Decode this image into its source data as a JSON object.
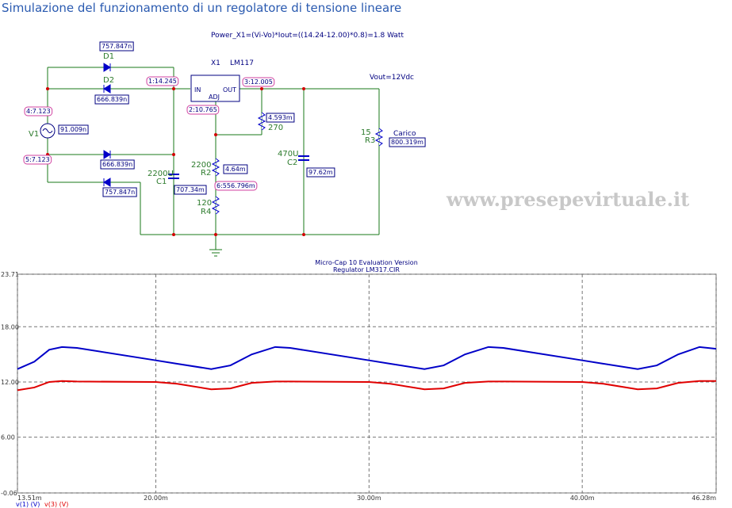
{
  "header": {
    "title": "Simulazione del funzionamento di un regolatore di tensione lineare"
  },
  "circuit": {
    "formula": "Power_X1=(Vi-Vo)*Iout=((14.24-12.00)*0.8)=1.8 Watt",
    "vout": "Vout=12Vdc",
    "ic_name": "X1",
    "ic_model": "LM117",
    "pin_in": "IN",
    "pin_out": "OUT",
    "pin_adj": "ADJ",
    "parts": [
      "D1",
      "D2",
      "V1",
      "2200U",
      "C1",
      "2200",
      "R2",
      "120",
      "R4",
      "270",
      "470U",
      "C2",
      "15",
      "R3",
      "Carico"
    ],
    "currents": [
      "757.847n",
      "666.839n",
      "91.009n",
      "666.839n",
      "757.847n",
      "707.34m",
      "4.593m",
      "4.64m",
      "97.62m",
      "800.319m"
    ],
    "nodes": [
      "1:14.245",
      "3:12.005",
      "2:10.765",
      "4:7.123",
      "5:7.123",
      "6:556.796m"
    ]
  },
  "watermark": "www.presepevirtuale.it",
  "chart_data": {
    "type": "line",
    "title": "Micro-Cap 10 Evaluation Version",
    "subtitle": "Regulator LM317.CIR",
    "x": [
      13.51,
      14.3,
      15.0,
      15.6,
      16.3,
      20.0,
      21.0,
      22.6,
      23.5,
      24.5,
      25.6,
      26.3,
      30.0,
      31.0,
      32.6,
      33.5,
      34.5,
      35.6,
      36.3,
      40.0,
      41.0,
      42.6,
      43.5,
      44.5,
      45.5,
      46.28
    ],
    "series": [
      {
        "name": "v(1) (V)",
        "color": "#0000c8",
        "values": [
          13.4,
          14.2,
          15.5,
          15.8,
          15.7,
          14.35,
          13.98,
          13.4,
          13.8,
          15.0,
          15.8,
          15.7,
          14.35,
          13.98,
          13.4,
          13.8,
          15.0,
          15.8,
          15.7,
          14.35,
          13.98,
          13.4,
          13.8,
          15.0,
          15.8,
          15.6
        ]
      },
      {
        "name": "v(3) (V)",
        "color": "#e00000",
        "values": [
          11.1,
          11.4,
          12.0,
          12.1,
          12.05,
          12.0,
          11.8,
          11.2,
          11.3,
          11.9,
          12.05,
          12.05,
          12.0,
          11.8,
          11.2,
          11.3,
          11.9,
          12.05,
          12.05,
          12.0,
          11.8,
          11.2,
          11.3,
          11.9,
          12.1,
          12.1
        ]
      }
    ],
    "xlim": [
      13.51,
      46.28
    ],
    "xticks": [
      {
        "value": 13.51,
        "label": "13.51m"
      },
      {
        "value": 20,
        "label": "20.00m"
      },
      {
        "value": 30,
        "label": "30.00m"
      },
      {
        "value": 40,
        "label": "40.00m"
      },
      {
        "value": 46.28,
        "label": "46.28m"
      }
    ],
    "ylim": [
      -0.06,
      23.71
    ],
    "yticks": [
      -0.06,
      {
        "value": 6,
        "label": "6.00"
      },
      {
        "value": 12,
        "label": "12.00"
      },
      {
        "value": 18,
        "label": "18.00"
      },
      23.71
    ],
    "grid": true
  }
}
